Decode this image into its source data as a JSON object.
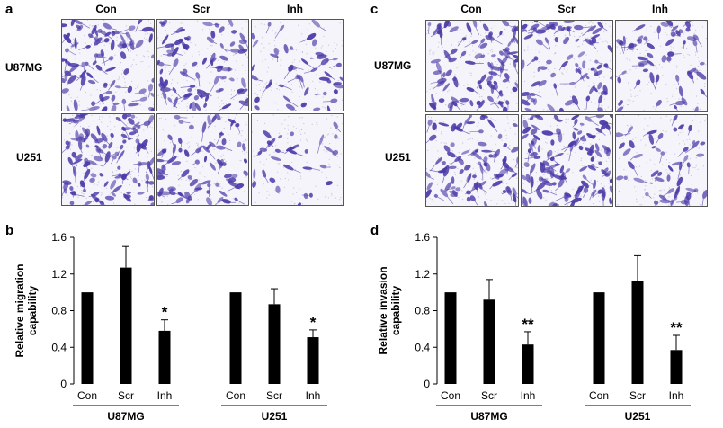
{
  "panels": {
    "a": {
      "letter": "a",
      "columns": [
        "Con",
        "Scr",
        "Inh"
      ],
      "rows": [
        "U87MG",
        "U251"
      ]
    },
    "c": {
      "letter": "c",
      "columns": [
        "Con",
        "Scr",
        "Inh"
      ],
      "rows": [
        "U87MG",
        "U251"
      ]
    },
    "b": {
      "letter": "b"
    },
    "d": {
      "letter": "d"
    }
  },
  "micrographs": {
    "stain_color": "#4b3aa8",
    "background_color": "#f4f4fa",
    "density": {
      "a": [
        [
          90,
          80,
          45
        ],
        [
          110,
          75,
          30
        ]
      ],
      "c": [
        [
          95,
          80,
          55
        ],
        [
          85,
          120,
          50
        ]
      ]
    }
  },
  "chart_data": [
    {
      "type": "bar",
      "panel": "b",
      "title": "",
      "ylabel": "Relative migration capability",
      "xlabel": "",
      "ylim": [
        0,
        1.6
      ],
      "yticks": [
        "0",
        "0.4",
        "0.8",
        "1.2",
        "1.6"
      ],
      "groups": [
        {
          "name": "U87MG",
          "categories": [
            "Con",
            "Scr",
            "Inh"
          ],
          "values": [
            1.0,
            1.27,
            0.58
          ],
          "errors": [
            0,
            0.23,
            0.12
          ],
          "annotations": [
            "",
            "",
            "*"
          ]
        },
        {
          "name": "U251",
          "categories": [
            "Con",
            "Scr",
            "Inh"
          ],
          "values": [
            1.0,
            0.87,
            0.51
          ],
          "errors": [
            0,
            0.17,
            0.08
          ],
          "annotations": [
            "",
            "",
            "*"
          ]
        }
      ],
      "bar_color": "#000000"
    },
    {
      "type": "bar",
      "panel": "d",
      "title": "",
      "ylabel": "Relative invasion capability",
      "xlabel": "",
      "ylim": [
        0,
        1.6
      ],
      "yticks": [
        "0",
        "0.4",
        "0.8",
        "1.2",
        "1.6"
      ],
      "groups": [
        {
          "name": "U87MG",
          "categories": [
            "Con",
            "Scr",
            "Inh"
          ],
          "values": [
            1.0,
            0.92,
            0.43
          ],
          "errors": [
            0,
            0.22,
            0.14
          ],
          "annotations": [
            "",
            "",
            "**"
          ]
        },
        {
          "name": "U251",
          "categories": [
            "Con",
            "Scr",
            "Inh"
          ],
          "values": [
            1.0,
            1.12,
            0.37
          ],
          "errors": [
            0,
            0.28,
            0.16
          ],
          "annotations": [
            "",
            "",
            "**"
          ]
        }
      ],
      "bar_color": "#000000"
    }
  ]
}
